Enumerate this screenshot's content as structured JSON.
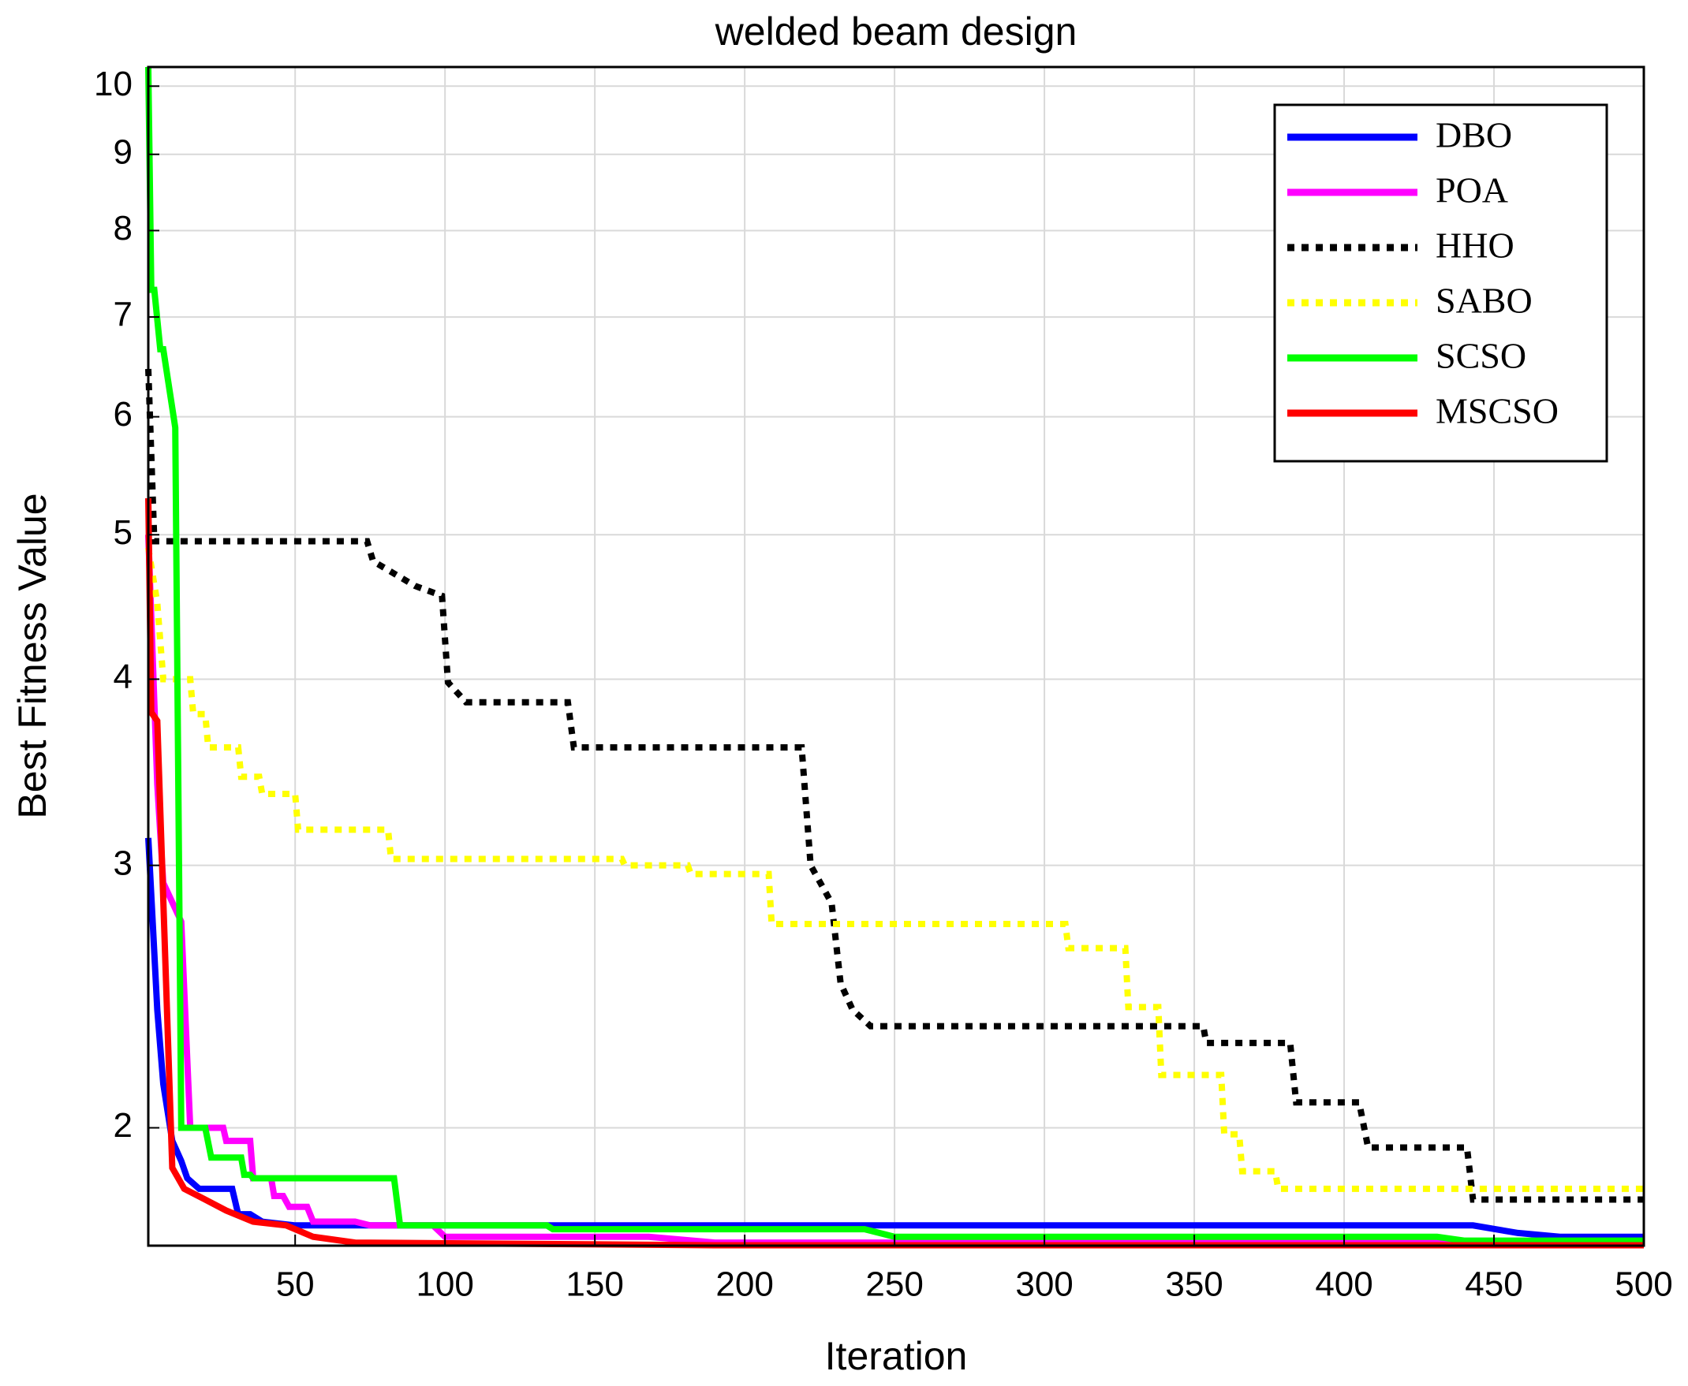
{
  "chart_data": {
    "type": "line",
    "title": "welded beam design",
    "x_label": "Iteration",
    "y_label": "Best Fitness Value",
    "xlim": [
      1,
      500
    ],
    "xticks": [
      50,
      100,
      150,
      200,
      250,
      300,
      350,
      400,
      450,
      500
    ],
    "ylim": [
      1.667,
      10.3
    ],
    "yticks": [
      2,
      3,
      4,
      5,
      6,
      7,
      8,
      9,
      10
    ],
    "y_scale": "log",
    "grid": true,
    "legend_position": "upper right",
    "series": [
      {
        "name": "DBO",
        "color": "#0000ff",
        "linestyle": "solid",
        "x": [
          1,
          4,
          6,
          9,
          12,
          14,
          18,
          29,
          31,
          35,
          39,
          50,
          443,
          458,
          472,
          500
        ],
        "values": [
          3.13,
          2.4,
          2.14,
          1.96,
          1.9,
          1.85,
          1.82,
          1.82,
          1.75,
          1.75,
          1.73,
          1.72,
          1.72,
          1.7,
          1.69,
          1.69
        ]
      },
      {
        "name": "POA",
        "color": "#ff00ff",
        "linestyle": "solid",
        "x": [
          1,
          4,
          6,
          12,
          15,
          26,
          27,
          35,
          36,
          42,
          43,
          46,
          48,
          54,
          56,
          70,
          75,
          96,
          100,
          168,
          190,
          500
        ],
        "values": [
          5.0,
          3.4,
          2.92,
          2.75,
          2.0,
          2.0,
          1.96,
          1.96,
          1.85,
          1.85,
          1.8,
          1.8,
          1.77,
          1.77,
          1.73,
          1.73,
          1.72,
          1.72,
          1.69,
          1.69,
          1.675,
          1.675
        ]
      },
      {
        "name": "HHO",
        "color": "#000000",
        "linestyle": "dotted",
        "x": [
          1,
          3,
          4,
          74,
          76,
          90,
          99,
          101,
          107,
          141,
          143,
          219,
          222,
          229,
          232,
          236,
          242,
          353,
          354,
          382,
          384,
          405,
          408,
          441,
          443,
          500
        ],
        "values": [
          6.46,
          4.95,
          4.95,
          4.95,
          4.8,
          4.62,
          4.55,
          3.98,
          3.86,
          3.86,
          3.6,
          3.6,
          3.0,
          2.83,
          2.5,
          2.4,
          2.34,
          2.34,
          2.28,
          2.28,
          2.08,
          2.08,
          1.94,
          1.94,
          1.79,
          1.79
        ]
      },
      {
        "name": "SABO",
        "color": "#ffff00",
        "linestyle": "dotted",
        "x": [
          1,
          4,
          6,
          15,
          16,
          20,
          21,
          31,
          32,
          38,
          39,
          50,
          51,
          81,
          82,
          159,
          160,
          181,
          182,
          208,
          209,
          307,
          308,
          327,
          328,
          338,
          339,
          359,
          360,
          365,
          366,
          377,
          378,
          500
        ],
        "values": [
          4.9,
          4.5,
          4.0,
          4.0,
          3.79,
          3.79,
          3.6,
          3.6,
          3.44,
          3.44,
          3.35,
          3.35,
          3.17,
          3.17,
          3.03,
          3.03,
          3.0,
          3.0,
          2.96,
          2.96,
          2.74,
          2.74,
          2.64,
          2.64,
          2.41,
          2.41,
          2.17,
          2.17,
          1.98,
          1.98,
          1.87,
          1.87,
          1.82,
          1.82
        ]
      },
      {
        "name": "SCSO",
        "color": "#00ff00",
        "linestyle": "solid",
        "x": [
          1,
          2,
          3,
          5,
          6,
          10,
          12,
          20,
          22,
          32,
          33,
          35,
          36,
          83,
          85,
          134,
          136,
          240,
          250,
          431,
          440,
          500
        ],
        "values": [
          10.3,
          7.3,
          7.3,
          6.66,
          6.66,
          5.9,
          2.0,
          2.0,
          1.91,
          1.91,
          1.86,
          1.86,
          1.85,
          1.85,
          1.72,
          1.72,
          1.71,
          1.71,
          1.69,
          1.69,
          1.68,
          1.68
        ]
      },
      {
        "name": "MSCSO",
        "color": "#ff0000",
        "linestyle": "solid",
        "x": [
          1,
          2,
          4,
          9,
          13,
          20,
          27,
          36,
          47,
          56,
          70,
          190,
          500
        ],
        "values": [
          5.29,
          3.8,
          3.75,
          1.88,
          1.82,
          1.79,
          1.76,
          1.73,
          1.72,
          1.69,
          1.675,
          1.668,
          1.668
        ]
      }
    ]
  }
}
